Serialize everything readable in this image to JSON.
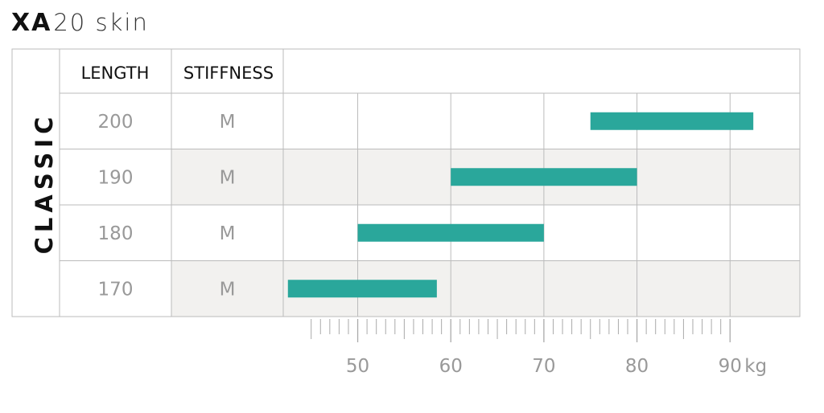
{
  "title": {
    "bold": "XA",
    "rest": "20 skin"
  },
  "side_label": "CLASSIC",
  "columns": {
    "length": "LENGTH",
    "stiffness": "STIFFNESS"
  },
  "unit": "kg",
  "colors": {
    "bar": "#2aa79b",
    "stripe": "#f2f1ef",
    "grid": "#bbbbbb"
  },
  "chart_data": {
    "type": "bar",
    "orientation": "horizontal-range",
    "categories": [
      "200",
      "190",
      "180",
      "170"
    ],
    "stiffness": [
      "M",
      "M",
      "M",
      "M"
    ],
    "series": [
      {
        "values": [
          [
            75,
            92.5
          ],
          [
            60,
            80
          ],
          [
            50,
            70
          ],
          [
            42.5,
            58.5
          ]
        ]
      }
    ],
    "x_ticks": [
      50,
      60,
      70,
      80,
      90
    ],
    "xlim": [
      42,
      97.5
    ],
    "minor_tick_step": 1,
    "minor_tick_range": [
      45,
      90
    ],
    "grid": true
  }
}
